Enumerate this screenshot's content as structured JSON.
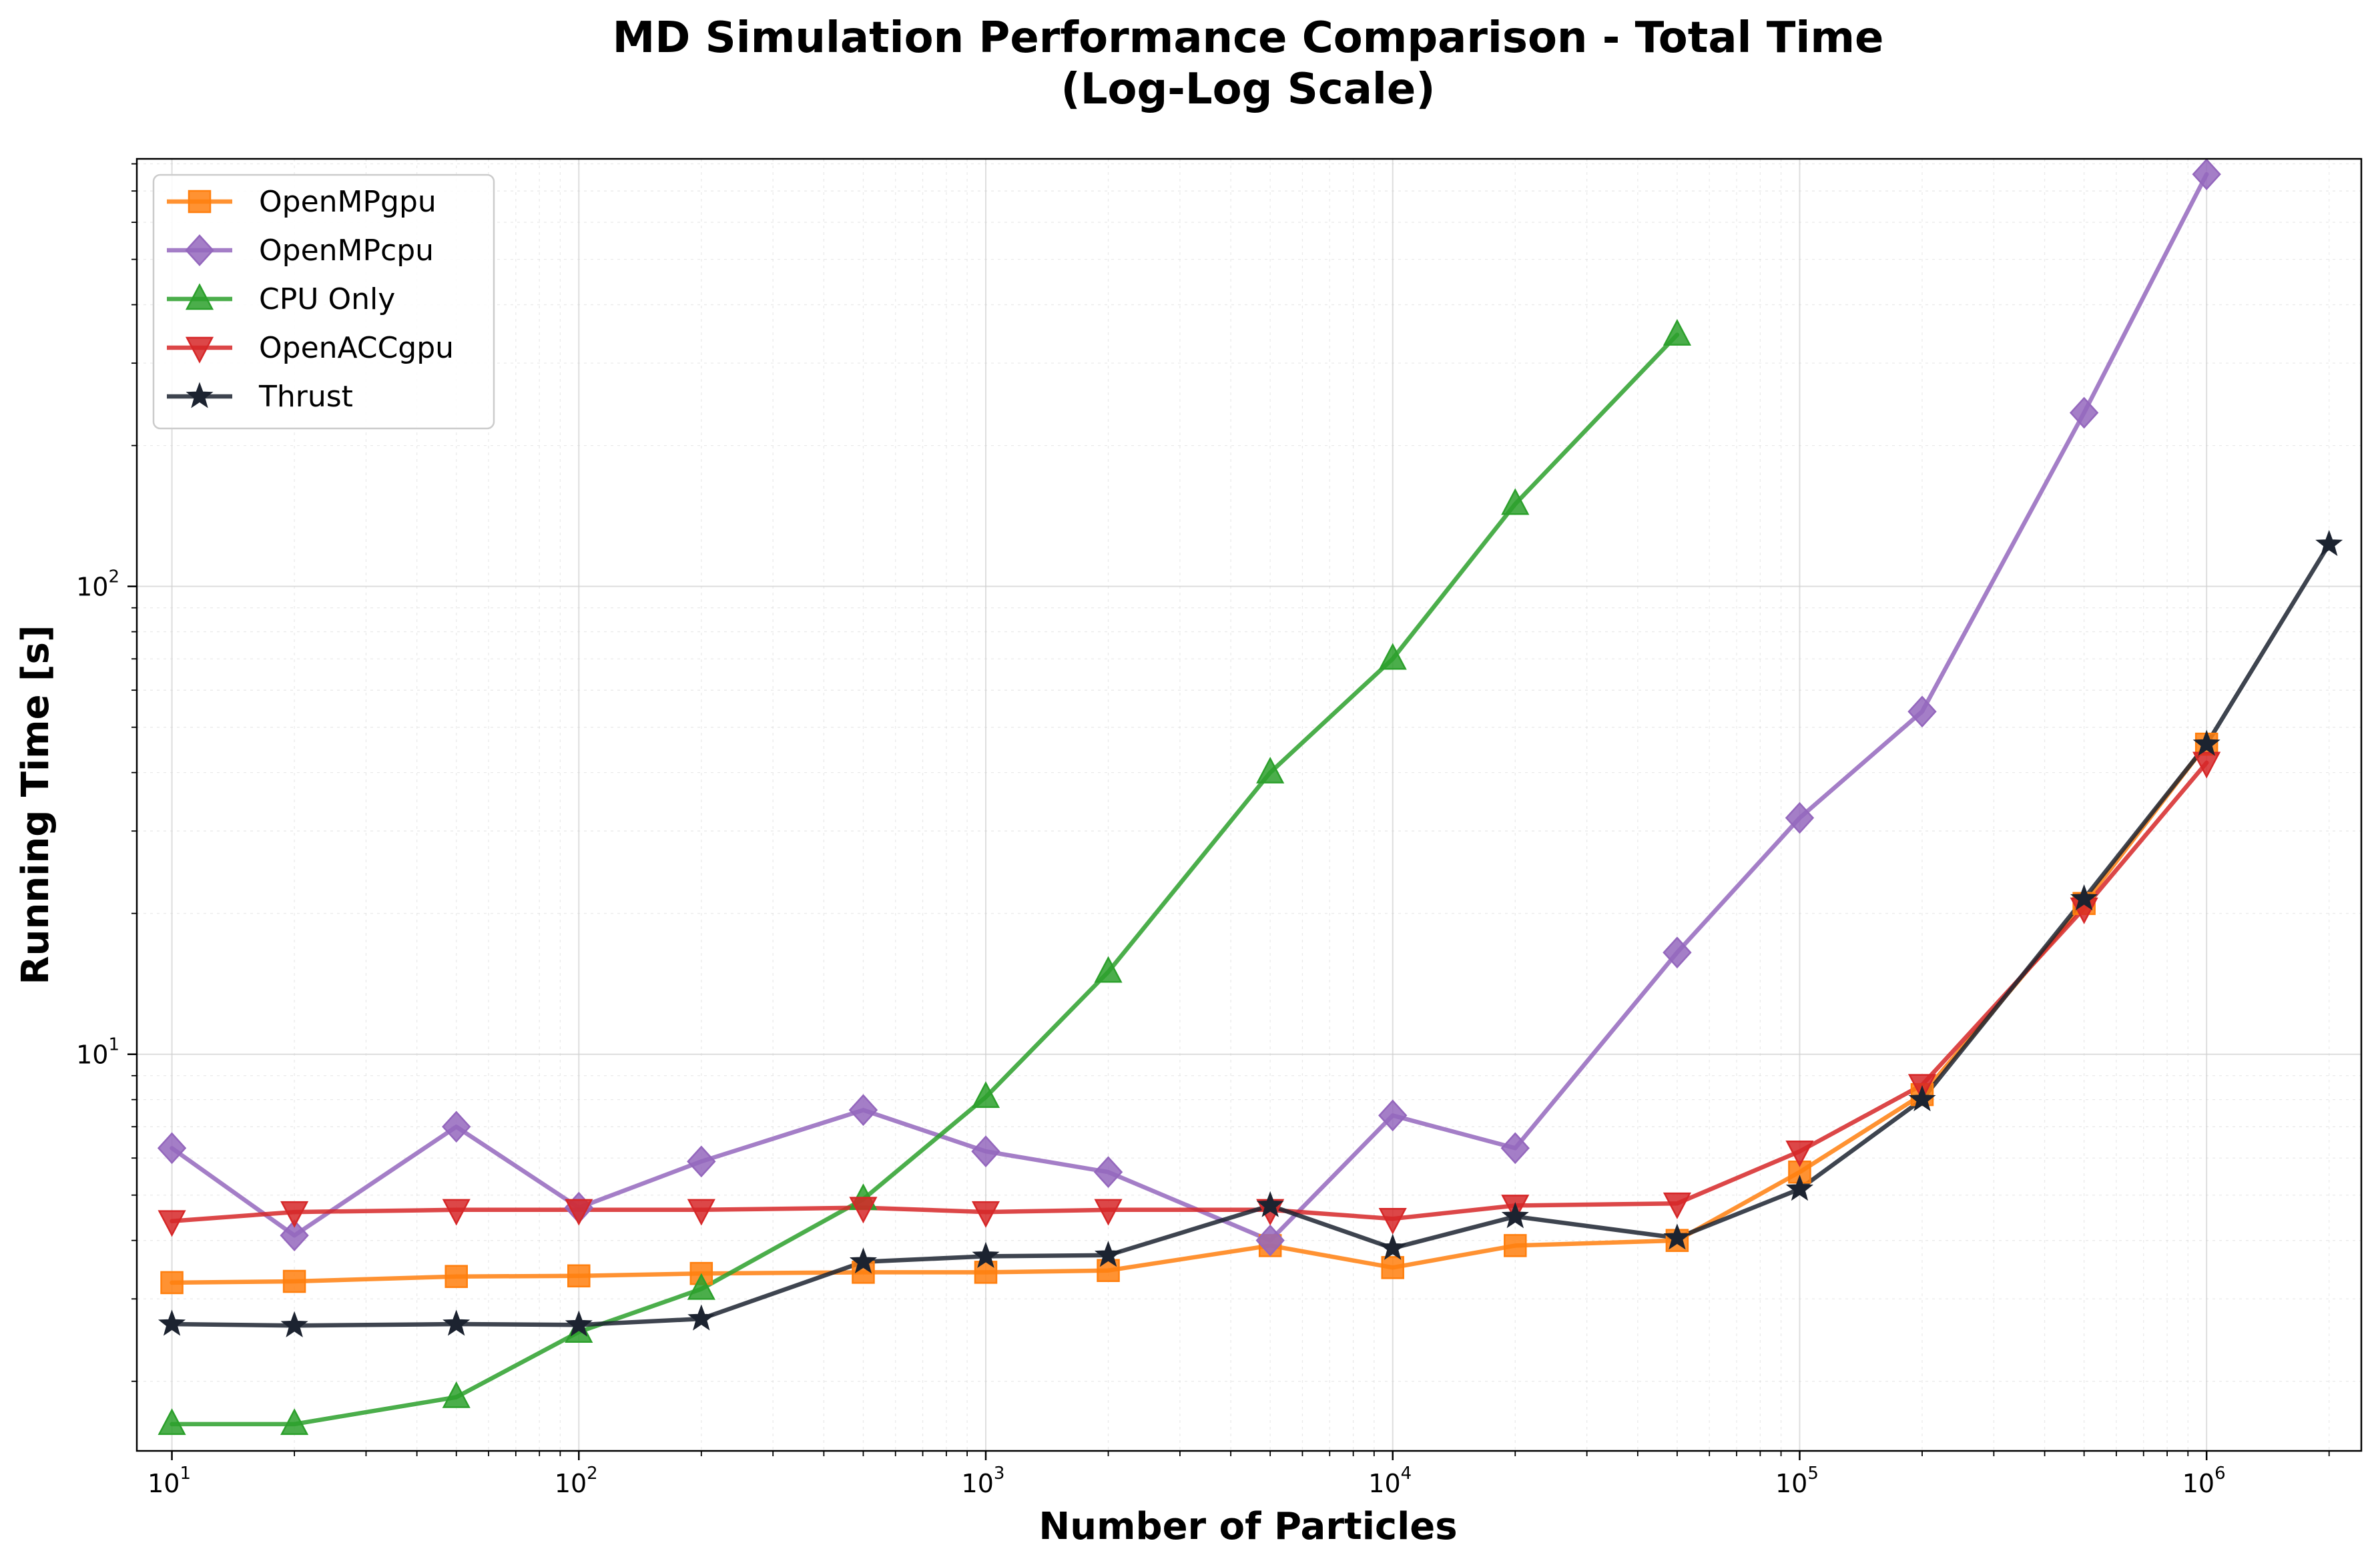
{
  "chart_data": {
    "type": "line",
    "title": "MD Simulation Performance Comparison - Total Time",
    "subtitle": "(Log-Log Scale)",
    "xlabel": "Number of Particles",
    "ylabel": "Running Time [s]",
    "xscale": "log",
    "yscale": "log",
    "xlim": [
      8.2,
      2400000
    ],
    "ylim": [
      1.42,
      820
    ],
    "xticks": [
      {
        "base": "10",
        "exp": "1",
        "value": 10
      },
      {
        "base": "10",
        "exp": "2",
        "value": 100
      },
      {
        "base": "10",
        "exp": "3",
        "value": 1000
      },
      {
        "base": "10",
        "exp": "4",
        "value": 10000
      },
      {
        "base": "10",
        "exp": "5",
        "value": 100000
      },
      {
        "base": "10",
        "exp": "6",
        "value": 1000000
      }
    ],
    "yticks": [
      {
        "base": "10",
        "exp": "1",
        "value": 10
      },
      {
        "base": "10",
        "exp": "2",
        "value": 100
      }
    ],
    "grid": true,
    "legend_position": "top-left",
    "series": [
      {
        "name": "OpenMPgpu",
        "color": "#ff7f0e",
        "marker": "square",
        "x": [
          10,
          20,
          50,
          100,
          200,
          500,
          1000,
          2000,
          5000,
          10000,
          20000,
          50000,
          100000,
          200000,
          500000,
          1000000
        ],
        "y": [
          3.25,
          3.27,
          3.35,
          3.36,
          3.4,
          3.42,
          3.42,
          3.45,
          3.9,
          3.5,
          3.9,
          4.0,
          5.6,
          8.2,
          21,
          46
        ]
      },
      {
        "name": "OpenMPcpu",
        "color": "#9467bd",
        "marker": "diamond",
        "x": [
          10,
          20,
          50,
          100,
          200,
          500,
          1000,
          2000,
          5000,
          10000,
          20000,
          50000,
          100000,
          200000,
          500000,
          1000000
        ],
        "y": [
          6.3,
          4.1,
          7.0,
          4.7,
          5.9,
          7.6,
          6.2,
          5.6,
          4.0,
          7.4,
          6.3,
          16.5,
          32,
          54,
          235,
          760
        ]
      },
      {
        "name": "CPU Only",
        "color": "#2ca02c",
        "marker": "triangle-up",
        "x": [
          10,
          20,
          50,
          100,
          200,
          500,
          1000,
          2000,
          5000,
          10000,
          20000,
          50000
        ],
        "y": [
          1.62,
          1.62,
          1.85,
          2.55,
          3.15,
          4.9,
          8.1,
          15,
          40,
          70,
          150,
          345
        ]
      },
      {
        "name": "OpenACCgpu",
        "color": "#d62728",
        "marker": "triangle-down",
        "x": [
          10,
          20,
          50,
          100,
          200,
          500,
          1000,
          2000,
          5000,
          10000,
          20000,
          50000,
          100000,
          200000,
          500000,
          1000000
        ],
        "y": [
          4.4,
          4.6,
          4.65,
          4.65,
          4.65,
          4.7,
          4.6,
          4.65,
          4.65,
          4.45,
          4.75,
          4.8,
          6.2,
          8.6,
          20.5,
          42
        ]
      },
      {
        "name": "Thrust",
        "color": "#1c2330",
        "marker": "star",
        "x": [
          10,
          20,
          50,
          100,
          200,
          500,
          1000,
          2000,
          5000,
          10000,
          20000,
          50000,
          100000,
          200000,
          500000,
          1000000,
          2000000
        ],
        "y": [
          2.65,
          2.63,
          2.65,
          2.64,
          2.72,
          3.6,
          3.7,
          3.72,
          4.75,
          3.85,
          4.5,
          4.05,
          5.15,
          8.0,
          21.5,
          46,
          123
        ]
      }
    ]
  }
}
